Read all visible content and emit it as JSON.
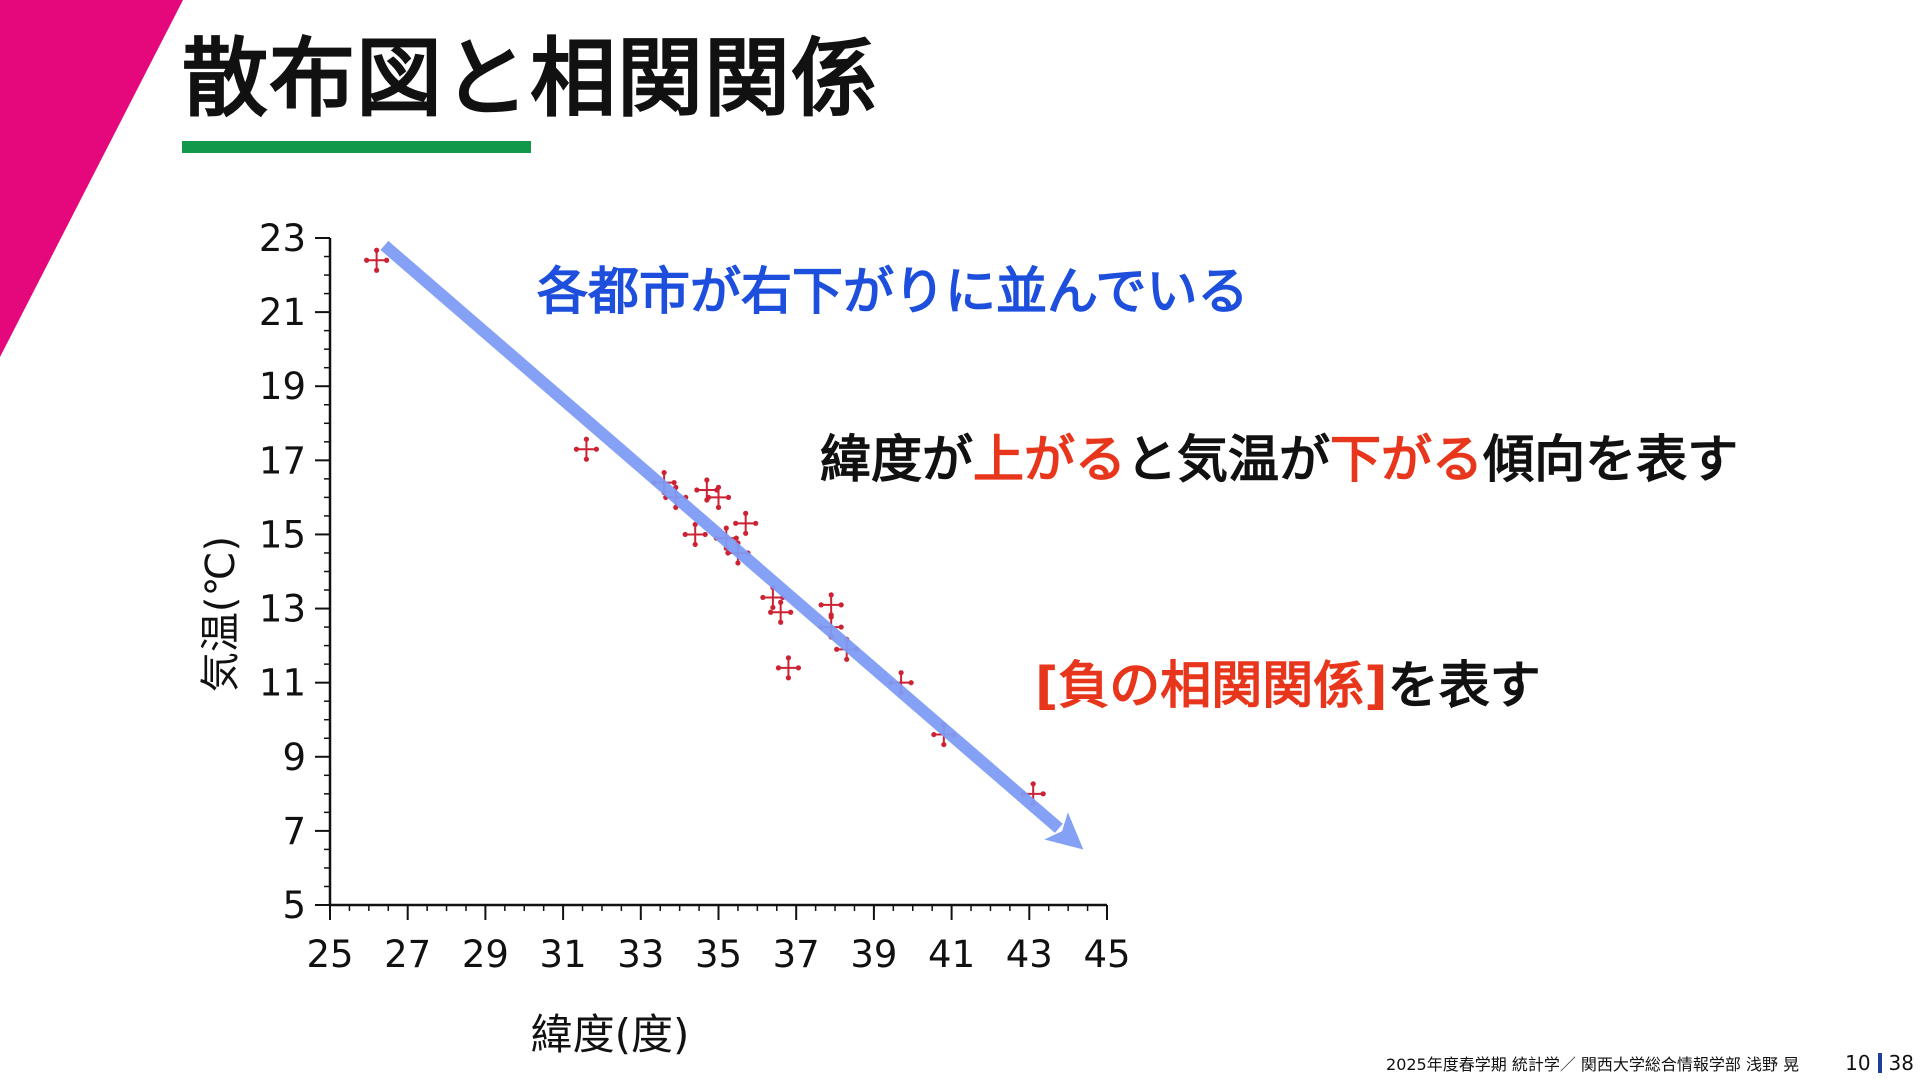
{
  "slide": {
    "title": "散布図と相関関係",
    "annotations": {
      "line1": "各都市が右下がりに並んでいる",
      "line2_part1": "緯度が",
      "line2_part2": "上がる",
      "line2_part3": "と気温が",
      "line2_part4": "下がる",
      "line2_part5": "傾向を表す",
      "line3_part1": "[負の相関関係]",
      "line3_part2": "を表す"
    },
    "footer": {
      "credit": "2025年度春学期  統計学／  関西大学総合情報学部  浅野  晃",
      "page_current": "10",
      "page_total": "38"
    }
  },
  "colors": {
    "corner_accent": "#e5087c",
    "title_underline": "#11984a",
    "points": "#cc2233",
    "trend_arrow": "#7f9cf5",
    "annotation_blue": "#1d4fdc",
    "annotation_red": "#e8361c"
  },
  "chart_data": {
    "type": "scatter",
    "xlabel": "緯度(度)",
    "ylabel": "気温(℃)",
    "xlim": [
      25,
      45
    ],
    "ylim": [
      5,
      23
    ],
    "x_ticks": [
      "25",
      "27",
      "29",
      "31",
      "33",
      "35",
      "37",
      "39",
      "41",
      "43",
      "45"
    ],
    "y_ticks": [
      "5",
      "7",
      "9",
      "11",
      "13",
      "15",
      "17",
      "19",
      "21",
      "23"
    ],
    "points": [
      {
        "x": 26.2,
        "y": 22.4
      },
      {
        "x": 31.6,
        "y": 17.3
      },
      {
        "x": 33.6,
        "y": 16.4
      },
      {
        "x": 33.9,
        "y": 16.0
      },
      {
        "x": 34.4,
        "y": 15.0
      },
      {
        "x": 34.7,
        "y": 16.2
      },
      {
        "x": 35.0,
        "y": 16.0
      },
      {
        "x": 35.2,
        "y": 14.9
      },
      {
        "x": 35.5,
        "y": 14.5
      },
      {
        "x": 35.7,
        "y": 15.3
      },
      {
        "x": 36.4,
        "y": 13.3
      },
      {
        "x": 36.6,
        "y": 12.9
      },
      {
        "x": 36.8,
        "y": 11.4
      },
      {
        "x": 37.9,
        "y": 12.5
      },
      {
        "x": 37.9,
        "y": 13.1
      },
      {
        "x": 38.3,
        "y": 11.9
      },
      {
        "x": 39.7,
        "y": 11.0
      },
      {
        "x": 40.8,
        "y": 9.6
      },
      {
        "x": 43.1,
        "y": 8.0
      }
    ],
    "trend_arrow": {
      "from": [
        26.4,
        22.8
      ],
      "to": [
        44.5,
        6.4
      ]
    }
  }
}
